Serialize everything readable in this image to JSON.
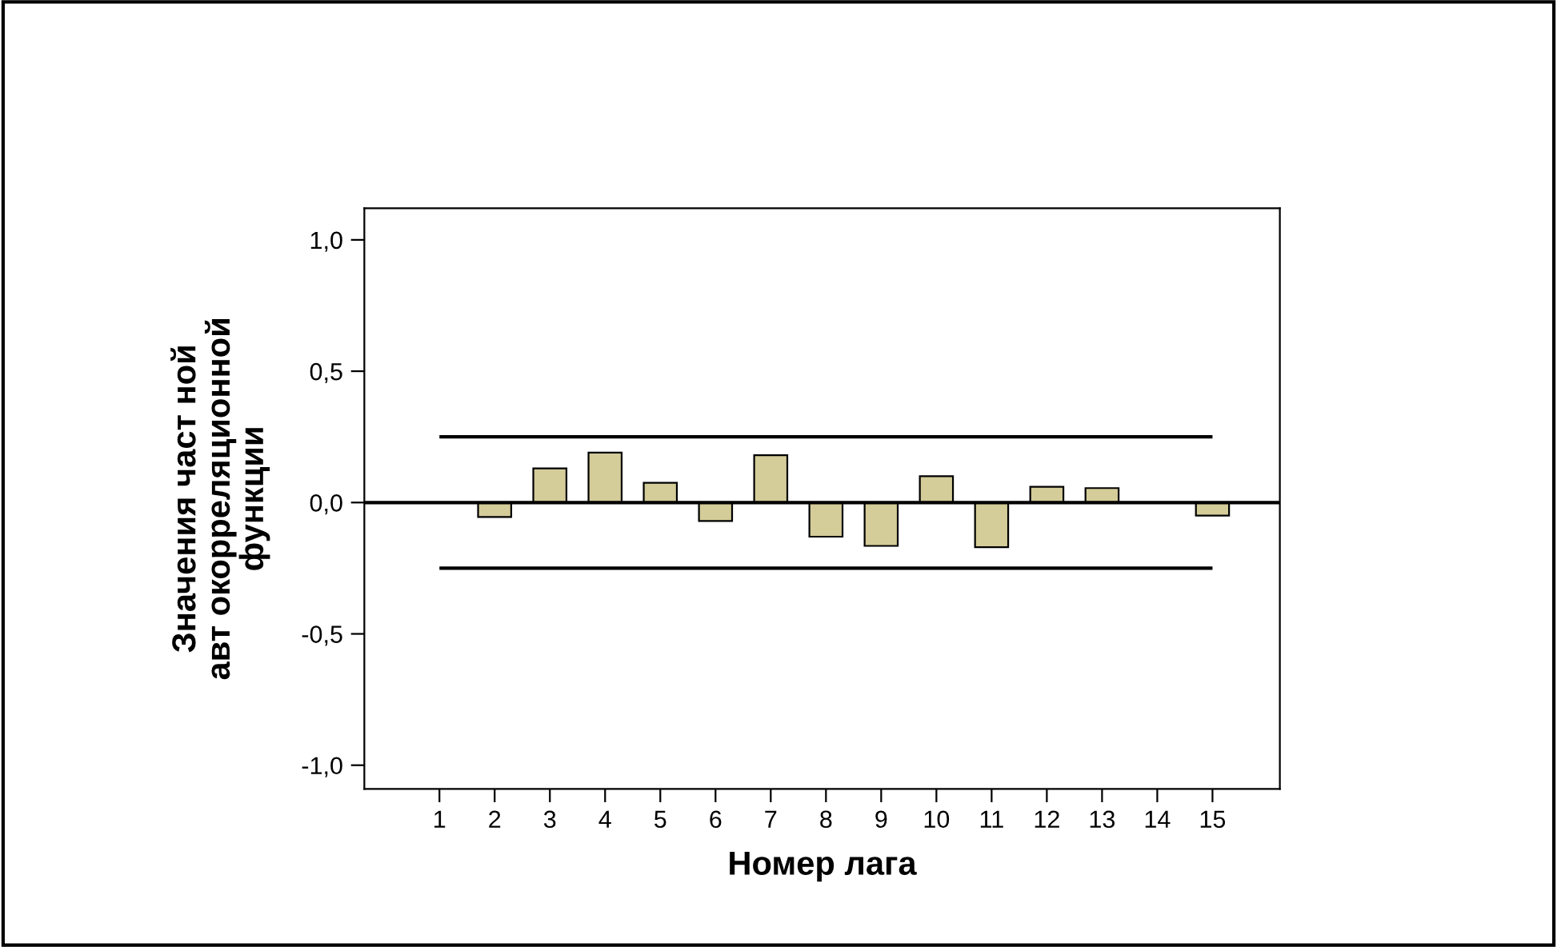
{
  "chart_data": {
    "type": "bar",
    "xlabel": "Номер лага",
    "ylabel": "Значения част ной\nавт окорреляционной\nфункции",
    "categories": [
      "1",
      "2",
      "3",
      "4",
      "5",
      "6",
      "7",
      "8",
      "9",
      "10",
      "11",
      "12",
      "13",
      "14",
      "15"
    ],
    "values": [
      null,
      -0.055,
      0.13,
      0.19,
      0.075,
      -0.07,
      0.18,
      -0.13,
      -0.165,
      0.1,
      -0.17,
      0.06,
      0.055,
      null,
      -0.05
    ],
    "color": "#d4cc99",
    "ylim": [
      -1.09,
      1.12
    ],
    "yticks": [
      {
        "value": -1.0,
        "label": "-1,0"
      },
      {
        "value": -0.5,
        "label": "-0,5"
      },
      {
        "value": 0.0,
        "label": "0,0"
      },
      {
        "value": 0.5,
        "label": "0,5"
      },
      {
        "value": 1.0,
        "label": "1,0"
      }
    ],
    "ref_lines": [
      {
        "axis": "y",
        "value": 0,
        "color": "#000000"
      },
      {
        "axis": "y",
        "value": 0.25,
        "color": "#000000"
      },
      {
        "axis": "y",
        "value": -0.25,
        "color": "#000000"
      }
    ],
    "legend": false
  }
}
